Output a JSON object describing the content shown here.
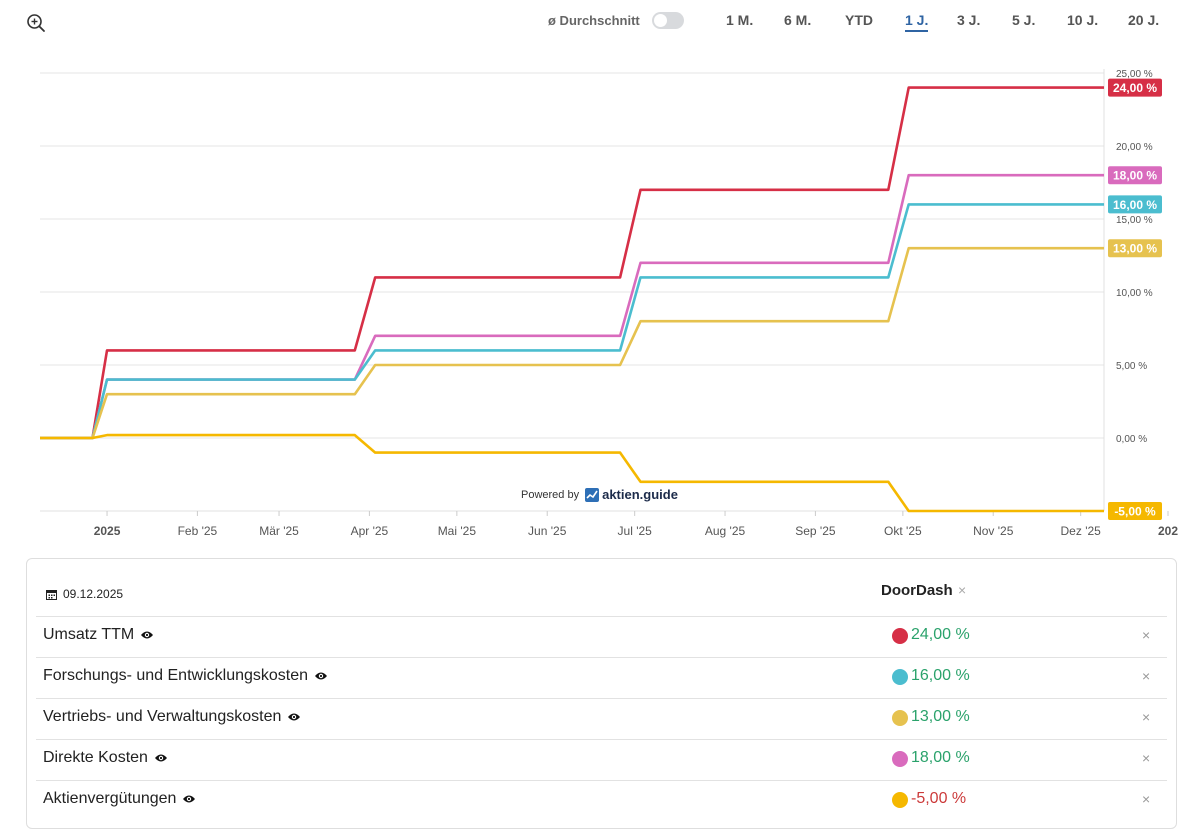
{
  "toolbar": {
    "average_label": "ø Durchschnitt",
    "ranges": [
      "1 M.",
      "6 M.",
      "YTD",
      "1 J.",
      "3 J.",
      "5 J.",
      "10 J.",
      "20 J."
    ],
    "active_range": "1 J."
  },
  "powered_by": {
    "text": "Powered by",
    "brand": "aktien.guide"
  },
  "chart_data": {
    "type": "line",
    "step": true,
    "x_ticks": [
      "2025",
      "Feb '25",
      "Mär '25",
      "Apr '25",
      "Mai '25",
      "Jun '25",
      "Jul '25",
      "Aug '25",
      "Sep '25",
      "Okt '25",
      "Nov '25",
      "Dez '25",
      "202"
    ],
    "y_ticks": [
      "25,00 %",
      "20,00 %",
      "15,00 %",
      "10,00 %",
      "5,00 %",
      "0,00 %"
    ],
    "ylim": [
      -5,
      25
    ],
    "y_tick_values": [
      25,
      20,
      15,
      10,
      5,
      0
    ],
    "x_range": [
      "2024-12-09",
      "2025-12-09"
    ],
    "grid": true,
    "series": [
      {
        "name": "Umsatz TTM",
        "color": "#d62f46",
        "points": [
          [
            "2024-12-09",
            0
          ],
          [
            "2024-12-27",
            0
          ],
          [
            "2025-01-01",
            6
          ],
          [
            "2025-03-27",
            6
          ],
          [
            "2025-04-03",
            11
          ],
          [
            "2025-06-26",
            11
          ],
          [
            "2025-07-03",
            17
          ],
          [
            "2025-09-26",
            17
          ],
          [
            "2025-10-03",
            24
          ],
          [
            "2025-12-09",
            24
          ]
        ],
        "end_label": "24,00 %"
      },
      {
        "name": "Direkte Kosten",
        "color": "#d96bbd",
        "points": [
          [
            "2024-12-09",
            0
          ],
          [
            "2024-12-27",
            0
          ],
          [
            "2025-01-01",
            4
          ],
          [
            "2025-03-27",
            4
          ],
          [
            "2025-04-03",
            7
          ],
          [
            "2025-06-26",
            7
          ],
          [
            "2025-07-03",
            12
          ],
          [
            "2025-09-26",
            12
          ],
          [
            "2025-10-03",
            18
          ],
          [
            "2025-12-09",
            18
          ]
        ],
        "end_label": "18,00 %"
      },
      {
        "name": "Forschungs- und Entwicklungskosten",
        "color": "#4bbdcf",
        "points": [
          [
            "2024-12-09",
            0
          ],
          [
            "2024-12-27",
            0
          ],
          [
            "2025-01-01",
            4
          ],
          [
            "2025-03-27",
            4
          ],
          [
            "2025-04-03",
            6
          ],
          [
            "2025-06-26",
            6
          ],
          [
            "2025-07-03",
            11
          ],
          [
            "2025-09-26",
            11
          ],
          [
            "2025-10-03",
            16
          ],
          [
            "2025-12-09",
            16
          ]
        ],
        "end_label": "16,00 %"
      },
      {
        "name": "Vertriebs- und Verwaltungskosten",
        "color": "#e6c24f",
        "points": [
          [
            "2024-12-09",
            0
          ],
          [
            "2024-12-27",
            0
          ],
          [
            "2025-01-01",
            3
          ],
          [
            "2025-03-27",
            3
          ],
          [
            "2025-04-03",
            5
          ],
          [
            "2025-06-26",
            5
          ],
          [
            "2025-07-03",
            8
          ],
          [
            "2025-09-26",
            8
          ],
          [
            "2025-10-03",
            13
          ],
          [
            "2025-12-09",
            13
          ]
        ],
        "end_label": "13,00 %"
      },
      {
        "name": "Aktienvergütungen",
        "color": "#f5b800",
        "points": [
          [
            "2024-12-09",
            0
          ],
          [
            "2024-12-27",
            0
          ],
          [
            "2025-01-01",
            0.2
          ],
          [
            "2025-03-27",
            0.2
          ],
          [
            "2025-04-03",
            -1
          ],
          [
            "2025-06-26",
            -1
          ],
          [
            "2025-07-03",
            -3
          ],
          [
            "2025-09-26",
            -3
          ],
          [
            "2025-10-03",
            -5
          ],
          [
            "2025-12-09",
            -5
          ]
        ],
        "end_label": "-5,00 %"
      }
    ]
  },
  "table": {
    "date": "09.12.2025",
    "company": "DoorDash",
    "rows": [
      {
        "label": "Umsatz TTM",
        "value": "24,00 %",
        "color": "#d62f46",
        "sign": "pos"
      },
      {
        "label": "Forschungs- und Entwicklungskosten",
        "value": "16,00 %",
        "color": "#4bbdcf",
        "sign": "pos"
      },
      {
        "label": "Vertriebs- und Verwaltungskosten",
        "value": "13,00 %",
        "color": "#e6c24f",
        "sign": "pos"
      },
      {
        "label": "Direkte Kosten",
        "value": "18,00 %",
        "color": "#d96bbd",
        "sign": "pos"
      },
      {
        "label": "Aktienvergütungen",
        "value": "-5,00 %",
        "color": "#f5b800",
        "sign": "neg"
      }
    ]
  }
}
